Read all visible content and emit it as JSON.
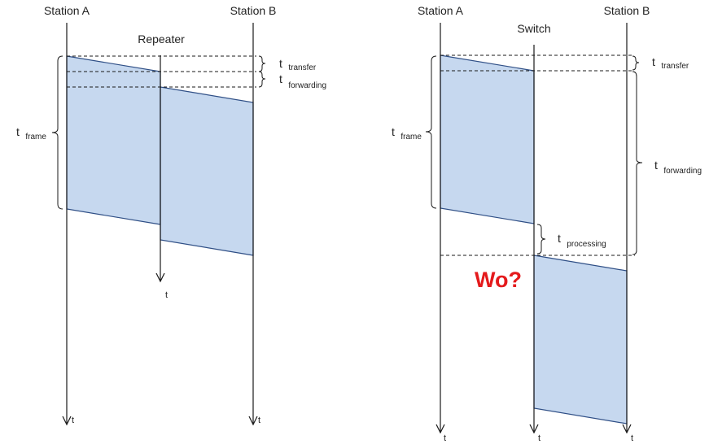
{
  "left": {
    "station_a": "Station A",
    "station_b": "Station B",
    "relay": "Repeater",
    "t_transfer": {
      "symbol": "t",
      "sub": "transfer"
    },
    "t_forwarding": {
      "symbol": "t",
      "sub": "forwarding"
    },
    "t_frame": {
      "symbol": "t",
      "sub": "frame"
    },
    "axis_a": "t",
    "axis_relay": "t",
    "axis_b": "t"
  },
  "right": {
    "station_a": "Station A",
    "station_b": "Station B",
    "relay": "Switch",
    "t_transfer": {
      "symbol": "t",
      "sub": "transfer"
    },
    "t_forwarding": {
      "symbol": "t",
      "sub": "forwarding"
    },
    "t_frame": {
      "symbol": "t",
      "sub": "frame"
    },
    "t_processing": {
      "symbol": "t",
      "sub": "processing"
    },
    "question": "Wo?",
    "axis_a": "t",
    "axis_relay": "t",
    "axis_b": "t"
  },
  "colors": {
    "frame_fill": "#c6d8ef",
    "frame_stroke": "#2f4f86",
    "question": "#e41a1c"
  }
}
